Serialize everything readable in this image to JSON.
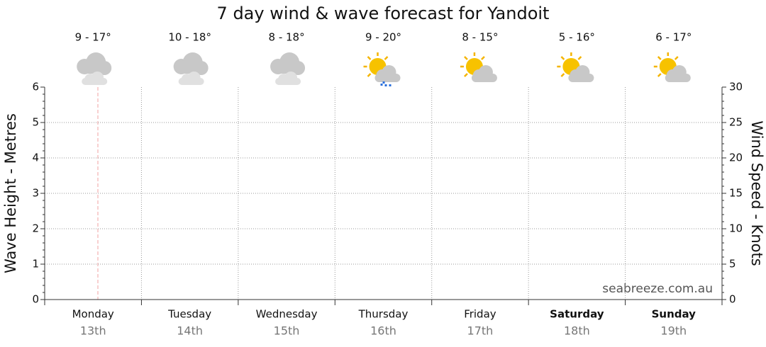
{
  "chart_data": {
    "type": "line",
    "title": "7 day wind & wave forecast for Yandoit",
    "categories": [
      "Monday",
      "Tuesday",
      "Wednesday",
      "Thursday",
      "Friday",
      "Saturday",
      "Sunday"
    ],
    "dates": [
      "13th",
      "14th",
      "15th",
      "16th",
      "17th",
      "18th",
      "19th"
    ],
    "temperatures": [
      "9 - 17°",
      "10 - 18°",
      "8 - 18°",
      "9 - 20°",
      "8 - 15°",
      "5 - 16°",
      "6 - 17°"
    ],
    "y_label": "Wave Height - Metres",
    "y2_label": "Wind Speed - Knots",
    "ylim": [
      0,
      6
    ],
    "yticks": [
      0,
      1,
      2,
      3,
      4,
      5,
      6
    ],
    "y2lim": [
      0,
      30
    ],
    "y2ticks": [
      0,
      5,
      10,
      15,
      20,
      25,
      30
    ],
    "grid": true,
    "watermark": "seabreeze.com.au"
  }
}
